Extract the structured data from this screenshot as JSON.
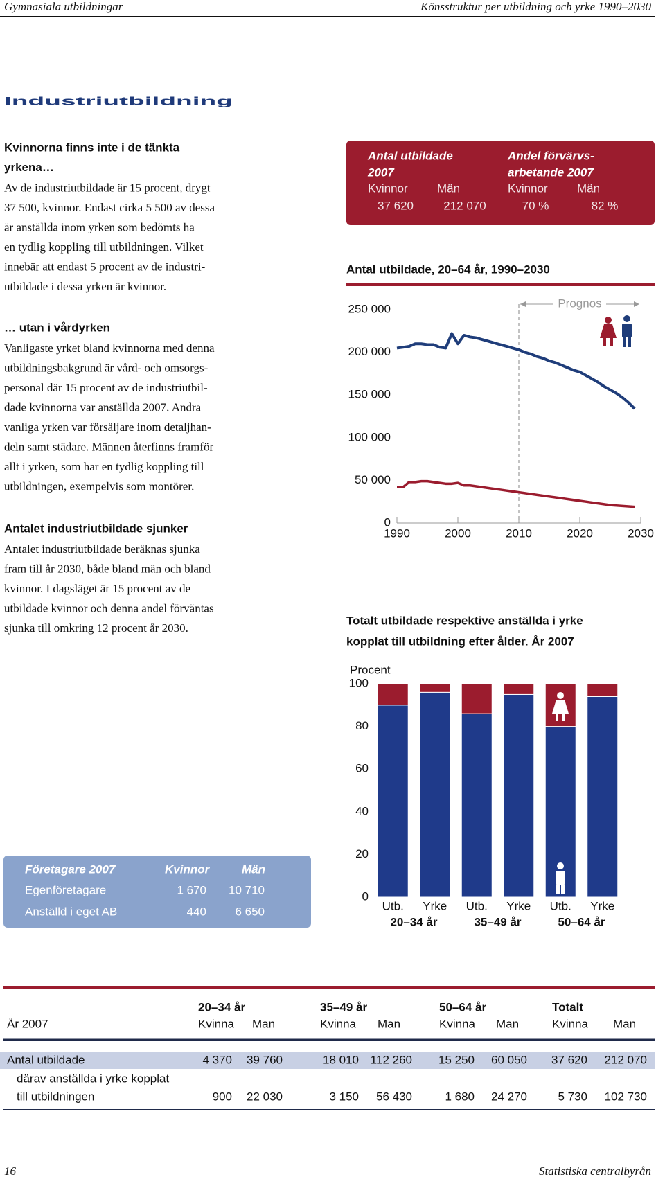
{
  "header": {
    "left": "Gymnasiala utbildningar",
    "right": "Könsstruktur per utbildning och yrke 1990–2030"
  },
  "title": "Industriutbildning",
  "sections": [
    {
      "heading": [
        "Kvinnorna finns inte i de tänkta",
        "yrkena…"
      ],
      "body": [
        "Av de industriutbildade är 15 procent, drygt",
        "37 500, kvinnor. Endast cirka 5 500 av dessa",
        "är anställda inom yrken som bedömts ha",
        "en tydlig koppling till utbildningen. Vilket",
        "innebär att endast 5 procent av de industri-",
        "utbildade i dessa yrken är kvinnor."
      ]
    },
    {
      "heading": [
        "… utan i vårdyrken"
      ],
      "body": [
        "Vanligaste yrket bland kvinnorna med denna",
        "utbildningsbakgrund är vård- och omsorgs-",
        "personal där 15 procent av de industriutbil-",
        "dade kvinnorna var anställda 2007. Andra",
        "vanliga yrken var försäljare inom detaljhan-",
        "deln samt städare. Männen återfinns framför",
        "allt i yrken, som har en tydlig koppling till",
        "utbildningen, exempelvis som montörer."
      ]
    },
    {
      "heading": [
        "Antalet industriutbildade sjunker"
      ],
      "body": [
        "Antalet industriutbildade beräknas sjunka",
        "fram till år 2030, både bland män och bland",
        "kvinnor. I dagsläget är 15 procent av de",
        "utbildade kvinnor och denna andel förväntas",
        "sjunka till omkring 12 procent år 2030."
      ]
    }
  ],
  "key_figures": {
    "columns": [
      {
        "heading": [
          "Antal utbildade",
          "2007"
        ],
        "labels": [
          "Kvinnor",
          "Män"
        ],
        "values": [
          "37 620",
          "212 070"
        ]
      },
      {
        "heading": [
          "Andel förvärvs-",
          "arbetande 2007"
        ],
        "labels": [
          "Kvinnor",
          "Män"
        ],
        "values": [
          "70 %",
          "82 %"
        ]
      }
    ]
  },
  "line_chart": {
    "type": "line",
    "title": "Antal utbildade, 20–64 år, 1990–2030",
    "annotation": "Prognos",
    "forecast_from": 2010,
    "x": [
      1990,
      1991,
      1992,
      1993,
      1994,
      1995,
      1996,
      1997,
      1998,
      1999,
      2000,
      2001,
      2002,
      2003,
      2004,
      2005,
      2006,
      2007,
      2008,
      2009,
      2010,
      2011,
      2012,
      2013,
      2014,
      2015,
      2016,
      2017,
      2018,
      2019,
      2020,
      2021,
      2022,
      2023,
      2024,
      2025,
      2026,
      2027,
      2028,
      2029
    ],
    "series": [
      {
        "color": "#1f3d7a",
        "values": [
          205000,
          206000,
          207000,
          210000,
          210000,
          209000,
          209000,
          206000,
          205000,
          222000,
          210000,
          220000,
          218000,
          217000,
          215000,
          213000,
          211000,
          209000,
          207000,
          205000,
          203000,
          200000,
          198000,
          195000,
          193000,
          190000,
          188000,
          185000,
          182000,
          179000,
          177000,
          173000,
          169000,
          165000,
          160000,
          156000,
          152000,
          147000,
          141000,
          134000
        ]
      },
      {
        "color": "#9b1c2e",
        "values": [
          42000,
          42000,
          48000,
          48000,
          49000,
          49000,
          48000,
          47000,
          46000,
          46000,
          47000,
          44000,
          44000,
          43000,
          42000,
          41000,
          40000,
          39000,
          38000,
          37000,
          36000,
          35000,
          34000,
          33000,
          32000,
          31000,
          30000,
          29000,
          28000,
          27000,
          26000,
          25000,
          24000,
          23000,
          22000,
          21000,
          20500,
          20000,
          19500,
          19000
        ]
      }
    ],
    "xlim": [
      1990,
      2030
    ],
    "xticks": [
      1990,
      2000,
      2010,
      2020,
      2030
    ],
    "ylim": [
      0,
      250000
    ],
    "yticks": [
      0,
      {
        "value": 50000,
        "label": "50 000"
      },
      {
        "value": 100000,
        "label": "100 000"
      },
      {
        "value": 150000,
        "label": "150 000"
      },
      {
        "value": 200000,
        "label": "200 000"
      },
      {
        "value": 250000,
        "label": "250 000"
      }
    ]
  },
  "bar_chart": {
    "type": "bar",
    "stacked": true,
    "title": [
      "Totalt utbildade respektive anställda i yrke",
      "kopplat till utbildning efter ålder. År 2007"
    ],
    "ylabel": "Procent",
    "categories": [
      "Utb.",
      "Yrke",
      "Utb.",
      "Yrke",
      "Utb.",
      "Yrke"
    ],
    "groups": [
      "20–34 år",
      "35–49 år",
      "50–64 år"
    ],
    "series": [
      {
        "color": "#1f3a8a",
        "values": [
          90,
          96,
          86,
          95,
          80,
          94
        ]
      },
      {
        "color": "#9b1c2e",
        "values": [
          10,
          4,
          14,
          5,
          20,
          6
        ]
      }
    ],
    "ylim": [
      0,
      100
    ],
    "yticks": [
      0,
      20,
      40,
      60,
      80,
      100
    ]
  },
  "entrepreneurs": {
    "header": [
      "Företagare 2007",
      "Kvinnor",
      "Män"
    ],
    "rows": [
      [
        "Egenföretagare",
        "1 670",
        "10 710"
      ],
      [
        "Anställd i eget AB",
        "440",
        "6 650"
      ]
    ]
  },
  "table": {
    "groups": [
      "20–34 år",
      "35–49 år",
      "50–64 år",
      "Totalt"
    ],
    "header": [
      "År 2007",
      "Kvinna",
      "Man",
      "Kvinna",
      "Man",
      "Kvinna",
      "Man",
      "Kvinna",
      "Man"
    ],
    "rows": [
      {
        "label": [
          "Antal utbildade"
        ],
        "values": [
          "4 370",
          "39 760",
          "18 010",
          "112 260",
          "15 250",
          "60 050",
          "37 620",
          "212 070"
        ]
      },
      {
        "label": [
          "därav anställda i yrke kopplat",
          "till utbildningen"
        ],
        "values": [
          "900",
          "22 030",
          "3 150",
          "56 430",
          "1 680",
          "24 270",
          "5 730",
          "102 730"
        ]
      }
    ]
  },
  "footer": {
    "page": "16",
    "publisher": "Statistiska centralbyrån"
  }
}
